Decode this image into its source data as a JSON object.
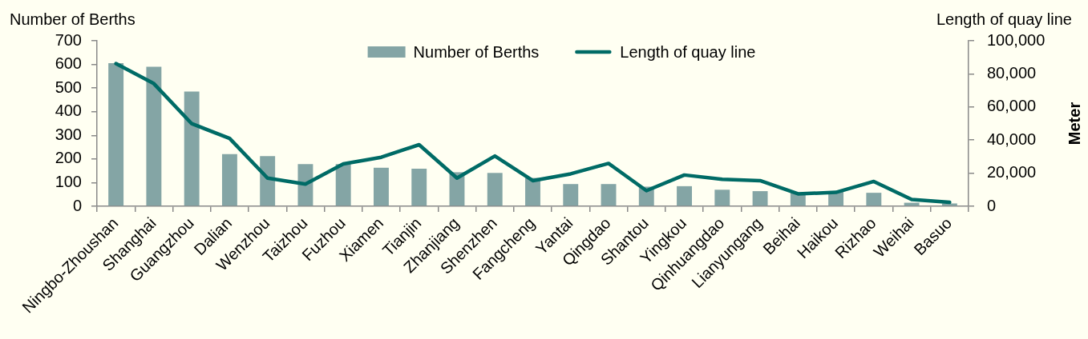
{
  "chart_data": {
    "type": "bar",
    "categories": [
      "Ningbo-Zhoushan",
      "Shanghai",
      "Guangzhou",
      "Dalian",
      "Wenzhou",
      "Taizhou",
      "Fuzhou",
      "Xiamen",
      "Tianjin",
      "Zhanjiang",
      "Shenzhen",
      "Fangcheng",
      "Yantai",
      "Qingdao",
      "Shantou",
      "Yingkou",
      "Qinhuangdao",
      "Lianyungang",
      "Beihai",
      "Haikou",
      "Rizhao",
      "Weihai",
      "Basuo"
    ],
    "series": [
      {
        "name": "Number of Berths",
        "color": "#84a5a5",
        "values": [
          605,
          590,
          485,
          221,
          212,
          178,
          178,
          163,
          159,
          144,
          141,
          120,
          94,
          94,
          83,
          85,
          70,
          64,
          58,
          62,
          57,
          15,
          12
        ]
      },
      {
        "name": "Length of quay line",
        "type": "line",
        "axis": "y2",
        "color": "#006b66",
        "values": [
          86200,
          74100,
          49900,
          41000,
          17000,
          13400,
          25600,
          29600,
          37200,
          17000,
          30400,
          15500,
          19600,
          25900,
          9400,
          18900,
          16300,
          15500,
          7500,
          8400,
          15000,
          4100,
          2400
        ]
      }
    ],
    "ylabel": "Number of Berths",
    "y2label": "Length of quay line",
    "annotations": [
      "Meter"
    ],
    "ylim": [
      0,
      700
    ],
    "yticks": [
      0,
      100,
      200,
      300,
      400,
      500,
      600,
      700
    ],
    "y2lim": [
      0,
      100000
    ],
    "y2ticks": [
      0,
      {
        "value": 20000,
        "label": "20,000"
      },
      {
        "value": 40000,
        "label": "40,000"
      },
      {
        "value": 60000,
        "label": "60,000"
      },
      {
        "value": 80000,
        "label": "80,000"
      },
      {
        "value": 100000,
        "label": "100,000"
      }
    ],
    "legend": "top"
  }
}
